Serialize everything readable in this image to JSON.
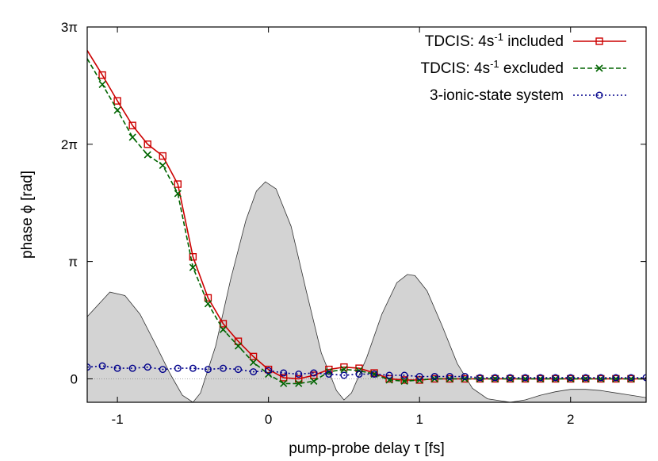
{
  "chart_data": {
    "type": "line",
    "title": "",
    "xlabel": "pump-probe delay τ [fs]",
    "ylabel": "phase ϕ [rad]",
    "xlim": [
      -1.2,
      2.5
    ],
    "ylim": [
      -0.2,
      3.0
    ],
    "y_unit": "π rad",
    "x_ticks": [
      {
        "value": -1,
        "label": "-1"
      },
      {
        "value": 0,
        "label": "0"
      },
      {
        "value": 1,
        "label": "1"
      },
      {
        "value": 2,
        "label": "2"
      }
    ],
    "y_ticks": [
      {
        "value": 0,
        "label": "0"
      },
      {
        "value": 1,
        "label": "π"
      },
      {
        "value": 2,
        "label": "2π"
      },
      {
        "value": 3,
        "label": "3π"
      }
    ],
    "grid": false,
    "zero_line": true,
    "legend_position": "top-right",
    "background_pulse": {
      "fill_color": "#d3d3d3",
      "x": [
        -1.2,
        -1.05,
        -0.95,
        -0.85,
        -0.75,
        -0.65,
        -0.57,
        -0.5,
        -0.45,
        -0.35,
        -0.25,
        -0.15,
        -0.08,
        -0.02,
        0.05,
        0.15,
        0.25,
        0.35,
        0.45,
        0.5,
        0.55,
        0.65,
        0.75,
        0.85,
        0.92,
        0.97,
        1.05,
        1.15,
        1.25,
        1.35,
        1.45,
        1.55,
        1.6,
        1.7,
        1.8,
        1.9,
        2.0,
        2.1,
        2.2,
        2.3,
        2.4,
        2.5
      ],
      "y": [
        0.53,
        0.74,
        0.71,
        0.55,
        0.3,
        0.04,
        -0.14,
        -0.2,
        -0.12,
        0.28,
        0.85,
        1.35,
        1.6,
        1.68,
        1.62,
        1.3,
        0.75,
        0.22,
        -0.1,
        -0.18,
        -0.12,
        0.18,
        0.55,
        0.82,
        0.89,
        0.88,
        0.75,
        0.45,
        0.13,
        -0.08,
        -0.17,
        -0.19,
        -0.2,
        -0.18,
        -0.14,
        -0.11,
        -0.09,
        -0.09,
        -0.1,
        -0.12,
        -0.14,
        -0.16
      ]
    },
    "series": [
      {
        "name": "TDCIS: 4s⁻¹ included",
        "legend_main": "TDCIS: 4s",
        "legend_sup": "-1",
        "legend_suffix": " included",
        "color": "#cc0000",
        "dash": "none",
        "marker": "square",
        "x": [
          -1.2,
          -1.1,
          -1.0,
          -0.9,
          -0.8,
          -0.7,
          -0.6,
          -0.5,
          -0.4,
          -0.3,
          -0.2,
          -0.1,
          0.0,
          0.1,
          0.2,
          0.3,
          0.4,
          0.5,
          0.6,
          0.7,
          0.8,
          0.9,
          1.0,
          1.1,
          1.2,
          1.3,
          1.4,
          1.5,
          1.6,
          1.7,
          1.8,
          1.9,
          2.0,
          2.1,
          2.2,
          2.3,
          2.4,
          2.5
        ],
        "y": [
          2.8,
          2.59,
          2.37,
          2.16,
          2.0,
          1.9,
          1.66,
          1.04,
          0.69,
          0.47,
          0.32,
          0.19,
          0.08,
          0.01,
          0.0,
          0.03,
          0.08,
          0.1,
          0.09,
          0.05,
          0.0,
          -0.01,
          -0.01,
          0.0,
          0.0,
          0.0,
          0.0,
          0.0,
          0.0,
          0.0,
          0.0,
          0.0,
          0.0,
          0.0,
          0.0,
          0.0,
          0.0,
          0.0
        ],
        "marker_x": [
          -1.1,
          -1.0,
          -0.9,
          -0.8,
          -0.7,
          -0.6,
          -0.5,
          -0.4,
          -0.3,
          -0.2,
          -0.1,
          0.0,
          0.1,
          0.2,
          0.3,
          0.4,
          0.5,
          0.6,
          0.7,
          0.8,
          0.9,
          1.0,
          1.1,
          1.2,
          1.3,
          1.4,
          1.5,
          1.6,
          1.7,
          1.8,
          1.9,
          2.0,
          2.1,
          2.2,
          2.3,
          2.4
        ]
      },
      {
        "name": "TDCIS: 4s⁻¹ excluded",
        "legend_main": "TDCIS: 4s",
        "legend_sup": "-1",
        "legend_suffix": " excluded",
        "color": "#006400",
        "dash": "6,3",
        "marker": "x",
        "x": [
          -1.2,
          -1.1,
          -1.0,
          -0.9,
          -0.8,
          -0.7,
          -0.6,
          -0.5,
          -0.4,
          -0.3,
          -0.2,
          -0.1,
          0.0,
          0.1,
          0.2,
          0.3,
          0.4,
          0.5,
          0.6,
          0.7,
          0.8,
          0.9,
          1.0,
          1.1,
          1.2,
          1.3,
          1.4,
          1.5,
          1.6,
          1.7,
          1.8,
          1.9,
          2.0,
          2.1,
          2.2,
          2.3,
          2.4,
          2.5
        ],
        "y": [
          2.73,
          2.51,
          2.29,
          2.06,
          1.91,
          1.82,
          1.58,
          0.95,
          0.64,
          0.42,
          0.28,
          0.14,
          0.04,
          -0.04,
          -0.04,
          -0.02,
          0.06,
          0.08,
          0.07,
          0.04,
          -0.01,
          -0.02,
          -0.01,
          0.0,
          0.0,
          0.0,
          0.0,
          0.0,
          0.0,
          0.0,
          0.0,
          0.0,
          0.0,
          0.0,
          0.0,
          0.0,
          0.0,
          0.0
        ],
        "marker_x": [
          -1.1,
          -1.0,
          -0.9,
          -0.8,
          -0.7,
          -0.6,
          -0.5,
          -0.4,
          -0.3,
          -0.2,
          -0.1,
          0.0,
          0.1,
          0.2,
          0.3,
          0.4,
          0.5,
          0.6,
          0.7,
          0.8,
          0.9,
          1.0,
          1.1,
          1.2,
          1.3,
          1.4,
          1.5,
          1.6,
          1.7,
          1.8,
          1.9,
          2.0,
          2.1,
          2.2,
          2.3,
          2.4
        ]
      },
      {
        "name": "3-ionic-state system",
        "legend_main": "3-ionic-state system",
        "legend_sup": "",
        "legend_suffix": "",
        "color": "#00008b",
        "dash": "2,3",
        "marker": "circle",
        "x": [
          -1.2,
          -1.1,
          -1.0,
          -0.9,
          -0.8,
          -0.7,
          -0.6,
          -0.5,
          -0.4,
          -0.3,
          -0.2,
          -0.1,
          0.0,
          0.1,
          0.2,
          0.3,
          0.4,
          0.5,
          0.6,
          0.7,
          0.8,
          0.9,
          1.0,
          1.1,
          1.2,
          1.3,
          1.4,
          1.5,
          1.6,
          1.7,
          1.8,
          1.9,
          2.0,
          2.1,
          2.2,
          2.3,
          2.4,
          2.5
        ],
        "y": [
          0.1,
          0.11,
          0.09,
          0.09,
          0.1,
          0.08,
          0.09,
          0.09,
          0.08,
          0.09,
          0.08,
          0.06,
          0.07,
          0.05,
          0.04,
          0.05,
          0.04,
          0.03,
          0.04,
          0.04,
          0.03,
          0.03,
          0.02,
          0.02,
          0.02,
          0.02,
          0.01,
          0.01,
          0.01,
          0.01,
          0.01,
          0.01,
          0.01,
          0.01,
          0.01,
          0.01,
          0.01,
          0.01
        ],
        "marker_x": [
          -1.2,
          -1.1,
          -1.0,
          -0.9,
          -0.8,
          -0.7,
          -0.6,
          -0.5,
          -0.4,
          -0.3,
          -0.2,
          -0.1,
          0.0,
          0.1,
          0.2,
          0.3,
          0.4,
          0.5,
          0.6,
          0.7,
          0.8,
          0.9,
          1.0,
          1.1,
          1.2,
          1.3,
          1.4,
          1.5,
          1.6,
          1.7,
          1.8,
          1.9,
          2.0,
          2.1,
          2.2,
          2.3,
          2.4,
          2.5
        ]
      }
    ]
  }
}
